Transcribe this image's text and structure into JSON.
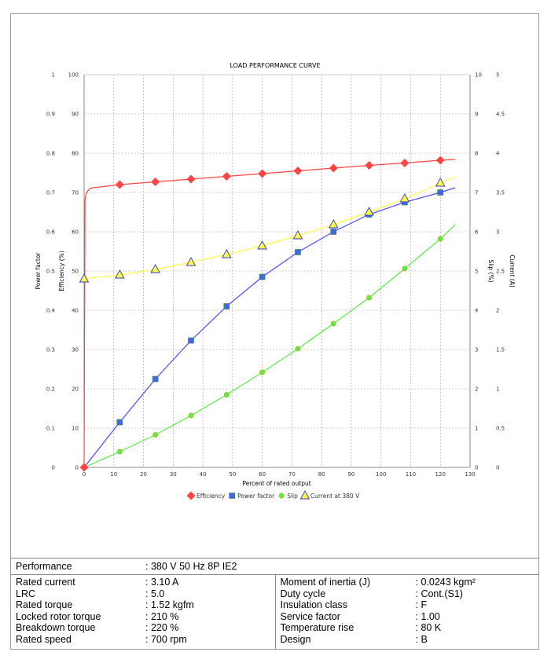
{
  "chart_data": {
    "type": "line",
    "title": "LOAD PERFORMANCE CURVE",
    "xlabel": "Percent of rated output",
    "xlim": [
      0,
      130
    ],
    "xticks": [
      "0",
      "10",
      "20",
      "30",
      "40",
      "50",
      "60",
      "70",
      "80",
      "90",
      "100",
      "110",
      "120",
      "130"
    ],
    "axes": {
      "power_factor": {
        "label": "Power factor",
        "ylim": [
          0,
          1
        ],
        "ticks": [
          "0",
          "0.1",
          "0.2",
          "0.3",
          "0.4",
          "0.5",
          "0.6",
          "0.7",
          "0.8",
          "0.9",
          "1"
        ]
      },
      "efficiency": {
        "label": "Efficiency (%)",
        "ylim": [
          0,
          100
        ],
        "ticks": [
          "0",
          "10",
          "20",
          "30",
          "40",
          "50",
          "60",
          "70",
          "80",
          "90",
          "100"
        ]
      },
      "slip": {
        "label": "Slip (%)",
        "ylim": [
          0,
          10
        ],
        "ticks": [
          "0",
          "1",
          "2",
          "3",
          "4",
          "5",
          "6",
          "7",
          "8",
          "9",
          "10"
        ]
      },
      "current": {
        "label": "Current (A)",
        "ylim": [
          0,
          5
        ],
        "ticks": [
          "0",
          "0.5",
          "1",
          "1.5",
          "2",
          "2.5",
          "3",
          "3.5",
          "4",
          "4.5",
          "5"
        ]
      }
    },
    "grid": true,
    "legend_position": "bottom",
    "series": [
      {
        "name": "Efficiency",
        "axis": "efficiency",
        "color": "#ff4444",
        "marker": "diamond",
        "x": [
          0,
          12,
          24,
          36,
          48,
          60,
          72,
          84,
          96,
          108,
          120
        ],
        "values": [
          0,
          72.0,
          72.7,
          73.4,
          74.1,
          74.8,
          75.5,
          76.2,
          76.9,
          77.5,
          78.2
        ],
        "curve_end": [
          125,
          78.4
        ]
      },
      {
        "name": "Power factor",
        "axis": "power_factor",
        "color": "#4a4aff",
        "marker": "square",
        "x": [
          0,
          12,
          24,
          36,
          48,
          60,
          72,
          84,
          96,
          108,
          120
        ],
        "values": [
          0,
          0.115,
          0.225,
          0.323,
          0.41,
          0.485,
          0.548,
          0.6,
          0.644,
          0.675,
          0.7
        ],
        "curve_end": [
          125,
          0.712
        ]
      },
      {
        "name": "Slip",
        "axis": "slip",
        "color": "#55ee44",
        "marker": "circle",
        "x": [
          0,
          12,
          24,
          36,
          48,
          60,
          72,
          84,
          96,
          108,
          120
        ],
        "values": [
          0,
          0.4,
          0.83,
          1.32,
          1.85,
          2.42,
          3.02,
          3.66,
          4.32,
          5.06,
          5.82
        ],
        "curve_end": [
          125,
          6.18
        ]
      },
      {
        "name": "Current at 380 V",
        "axis": "current",
        "color": "#ffff44",
        "marker": "triangle",
        "x": [
          0,
          12,
          24,
          36,
          48,
          60,
          72,
          84,
          96,
          108,
          120
        ],
        "values": [
          2.4,
          2.45,
          2.52,
          2.61,
          2.71,
          2.82,
          2.95,
          3.09,
          3.25,
          3.42,
          3.62
        ],
        "curve_end": [
          125,
          3.7
        ]
      }
    ]
  },
  "table": {
    "performance": {
      "label": "Performance",
      "value": ": 380 V 50 Hz 8P IE2"
    },
    "left": [
      {
        "label": "Rated current",
        "value": ": 3.10 A"
      },
      {
        "label": "LRC",
        "value": ": 5.0"
      },
      {
        "label": "Rated torque",
        "value": ": 1.52 kgfm"
      },
      {
        "label": "Locked rotor torque",
        "value": ": 210 %"
      },
      {
        "label": "Breakdown torque",
        "value": ": 220 %"
      },
      {
        "label": "Rated speed",
        "value": ": 700 rpm"
      }
    ],
    "right": [
      {
        "label": "Moment of inertia (J)",
        "value": ": 0.0243 kgm²"
      },
      {
        "label": "Duty cycle",
        "value": ": Cont.(S1)"
      },
      {
        "label": "Insulation class",
        "value": ": F"
      },
      {
        "label": "Service factor",
        "value": ": 1.00"
      },
      {
        "label": "Temperature rise",
        "value": ": 80 K"
      },
      {
        "label": "Design",
        "value": ": B"
      }
    ]
  }
}
